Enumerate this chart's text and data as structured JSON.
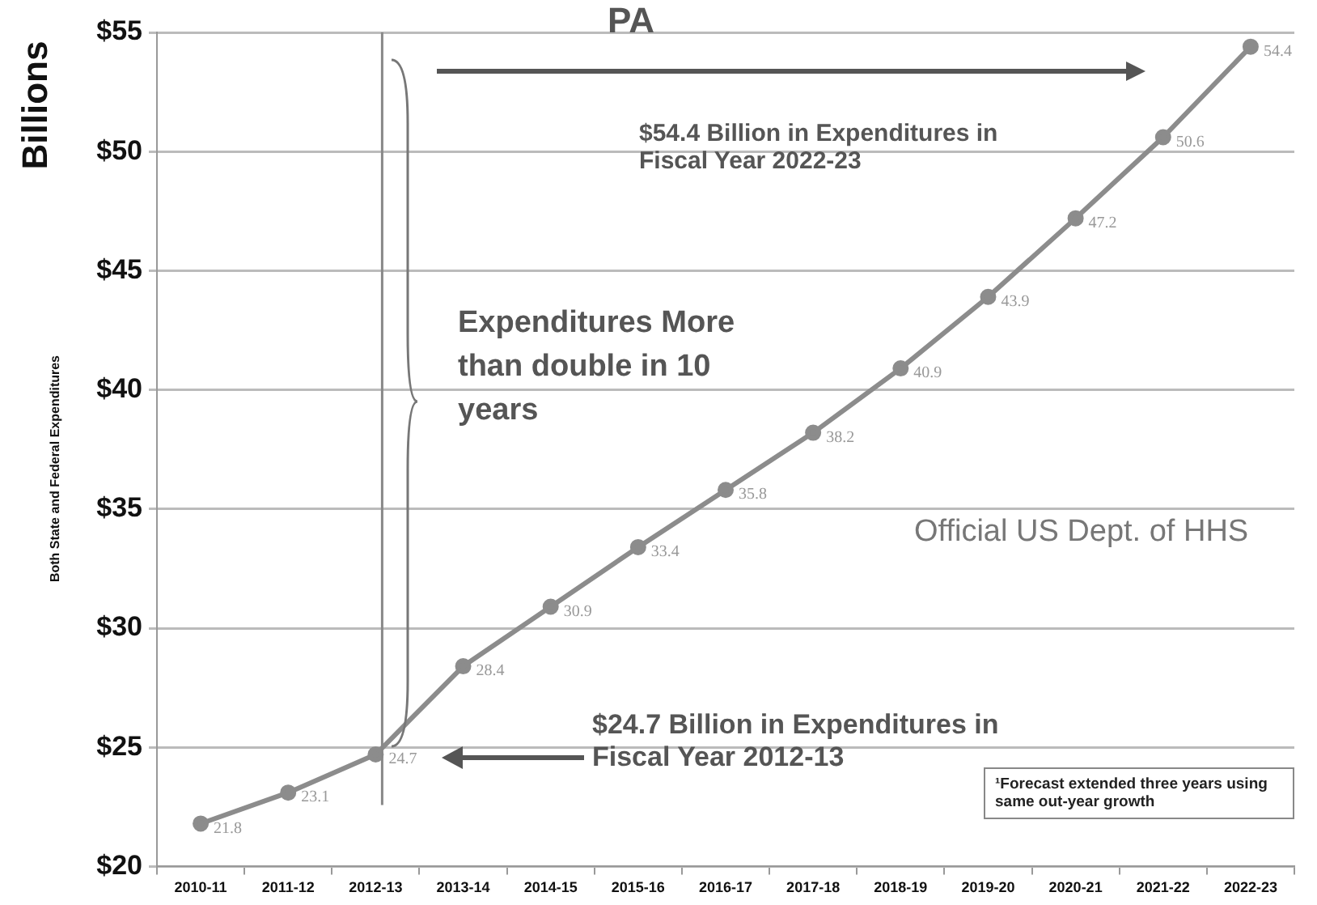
{
  "chart_data": {
    "type": "line",
    "title": "PA",
    "ylabel": "Both State and Federal Expenditures",
    "categories": [
      "2010-11",
      "2011-12",
      "2012-13",
      "2013-14",
      "2014-15",
      "2015-16",
      "2016-17",
      "2017-18",
      "2018-19",
      "2019-20",
      "2020-21",
      "2021-22",
      "2022-23"
    ],
    "series": [
      {
        "color": "#8c8c8c",
        "values": [
          21.8,
          23.1,
          24.7,
          28.4,
          30.9,
          33.4,
          35.8,
          38.2,
          40.9,
          43.9,
          47.2,
          50.6,
          54.4
        ]
      }
    ],
    "ylim": [
      20,
      55
    ],
    "yticks": [
      {
        "value": 20,
        "label": "$20"
      },
      {
        "value": 25,
        "label": "$25"
      },
      {
        "value": 30,
        "label": "$30"
      },
      {
        "value": 35,
        "label": "$35"
      },
      {
        "value": 40,
        "label": "$40"
      },
      {
        "value": 45,
        "label": "$45"
      },
      {
        "value": 50,
        "label": "$50"
      },
      {
        "value": 55,
        "label": "$55"
      }
    ],
    "grid": "y",
    "legend": false,
    "marker": "circle",
    "line_style": "solid",
    "data_labels": true,
    "ref_lines": [
      {
        "axis": "x",
        "value": "2012-13",
        "color": "#888888"
      }
    ],
    "annotations": [
      "Billions",
      "$54.4 Billion in Expenditures in Fiscal Year 2022-23",
      "Expenditures More than double in 10 years",
      "Official US Dept. of HHS",
      "$24.7 Billion in Expenditures in Fiscal Year 2012-13",
      "¹Forecast extended three years using same out-year growth"
    ]
  }
}
